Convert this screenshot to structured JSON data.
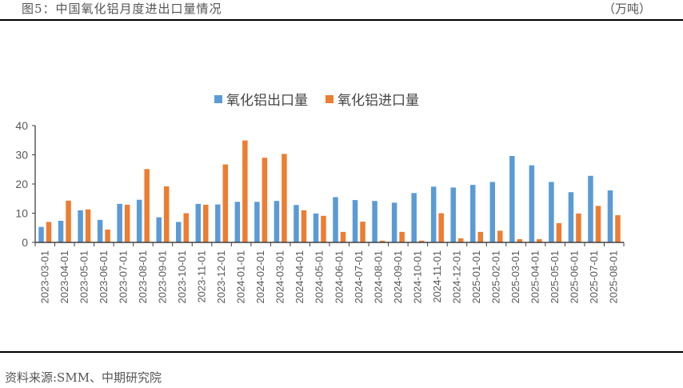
{
  "header": {
    "title": "图5：中国氧化铝月度进出口量情况",
    "unit": "（万吨）"
  },
  "footer": {
    "source": "资料来源:SMM、中期研究院"
  },
  "legend": {
    "export_label": "氧化铝出口量",
    "import_label": "氧化铝进口量"
  },
  "colors": {
    "export": "#5B9BD5",
    "import": "#ED7D31",
    "axis": "#404040",
    "tick_text": "#595959"
  },
  "chart_data": {
    "type": "bar",
    "title": "图5：中国氧化铝月度进出口量情况",
    "xlabel": "",
    "ylabel": "万吨",
    "ylim": [
      0,
      40
    ],
    "yticks": [
      0,
      10,
      20,
      30,
      40
    ],
    "grid": false,
    "legend_position": "top",
    "categories": [
      "2023-03-01",
      "2023-04-01",
      "2023-05-01",
      "2023-06-01",
      "2023-07-01",
      "2023-08-01",
      "2023-09-01",
      "2023-10-01",
      "2023-11-01",
      "2023-12-01",
      "2024-01-01",
      "2024-02-01",
      "2024-03-01",
      "2024-04-01",
      "2024-05-01",
      "2024-06-01",
      "2024-07-01",
      "2024-08-01",
      "2024-09-01",
      "2024-10-01",
      "2024-11-01",
      "2024-12-01",
      "2025-01-01",
      "2025-02-01",
      "2025-03-01",
      "2025-04-01",
      "2025-05-01",
      "2025-06-01",
      "2025-07-01",
      "2025-08-01"
    ],
    "series": [
      {
        "name": "氧化铝出口量",
        "color": "#5B9BD5",
        "values": [
          5.3,
          7.4,
          11.0,
          7.7,
          13.2,
          14.6,
          8.6,
          7.0,
          13.2,
          13.0,
          13.9,
          13.9,
          14.2,
          12.8,
          9.9,
          15.5,
          14.5,
          14.2,
          13.6,
          16.9,
          19.1,
          18.8,
          19.7,
          20.7,
          29.6,
          26.4,
          20.7,
          17.2,
          22.8,
          17.8
        ]
      },
      {
        "name": "氧化铝进口量",
        "color": "#ED7D31",
        "values": [
          7.0,
          14.3,
          11.3,
          4.4,
          12.9,
          25.1,
          19.2,
          10.0,
          12.9,
          26.7,
          34.9,
          29.0,
          30.3,
          11.0,
          9.1,
          3.6,
          7.1,
          0.6,
          3.6,
          0.6,
          10.0,
          1.4,
          3.6,
          4.0,
          1.1,
          1.1,
          6.6,
          9.9,
          12.5,
          9.3
        ]
      }
    ]
  }
}
